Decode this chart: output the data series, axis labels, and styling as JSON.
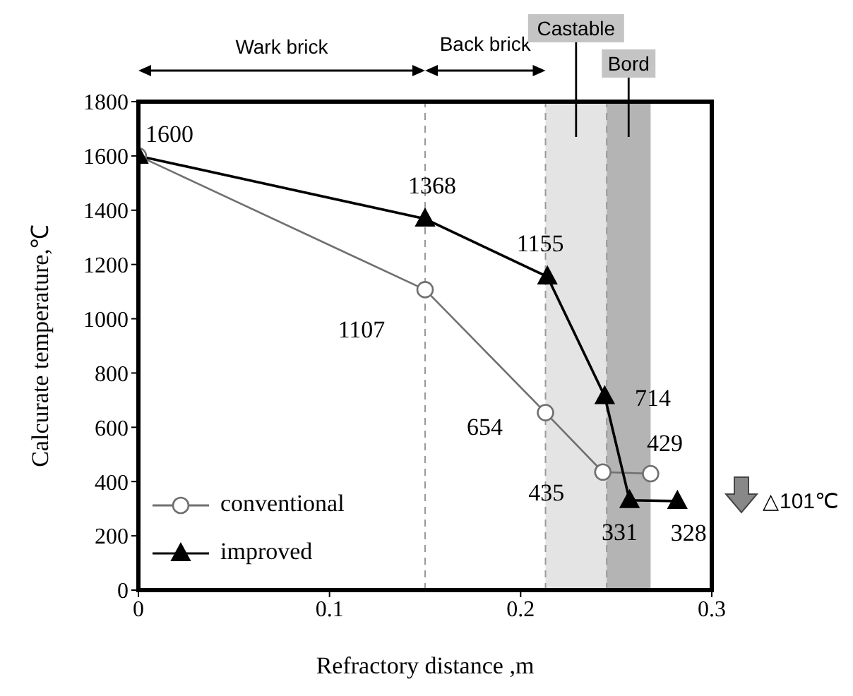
{
  "chart_data": {
    "type": "line",
    "xlabel": "Refractory distance ,m",
    "ylabel": "Calcurate temperature,℃",
    "xlim": [
      0,
      0.3
    ],
    "xticks": [
      0,
      0.1,
      0.2,
      0.3
    ],
    "ylim": [
      0,
      1800
    ],
    "yticks": [
      0,
      200,
      400,
      600,
      800,
      1000,
      1200,
      1400,
      1600,
      1800
    ],
    "series": [
      {
        "name": "conventional",
        "color": "#707070",
        "marker": "circle",
        "x": [
          0,
          0.15,
          0.213,
          0.243,
          0.268
        ],
        "values": [
          1600,
          1107,
          654,
          435,
          429
        ],
        "value_labels": [
          "1600",
          "1107",
          "654",
          "435",
          "429"
        ]
      },
      {
        "name": "improved",
        "color": "#000000",
        "marker": "triangle",
        "x": [
          0,
          0.15,
          0.214,
          0.244,
          0.257,
          0.282
        ],
        "values": [
          1600,
          1368,
          1155,
          714,
          331,
          328
        ],
        "value_labels": [
          null,
          "1368",
          "1155",
          "714",
          "331",
          "328"
        ]
      }
    ],
    "ref_lines": [
      {
        "axis": "x",
        "value": 0.15,
        "color": "#999999",
        "line_style": "dashed"
      },
      {
        "axis": "x",
        "value": 0.213,
        "color": "#999999",
        "line_style": "dashed"
      },
      {
        "axis": "x",
        "value": 0.245,
        "color": "#999999",
        "line_style": "dashed"
      }
    ],
    "bands": [
      {
        "axis": "x",
        "from": 0.213,
        "to": 0.245,
        "label": "Castable",
        "color": "#e4e4e4"
      },
      {
        "axis": "x",
        "from": 0.245,
        "to": 0.268,
        "label": "Bord",
        "color": "#b4b4b4"
      }
    ],
    "annotations": [
      "Wark brick",
      "Back brick",
      "△101℃"
    ],
    "legend": "bottom left"
  }
}
